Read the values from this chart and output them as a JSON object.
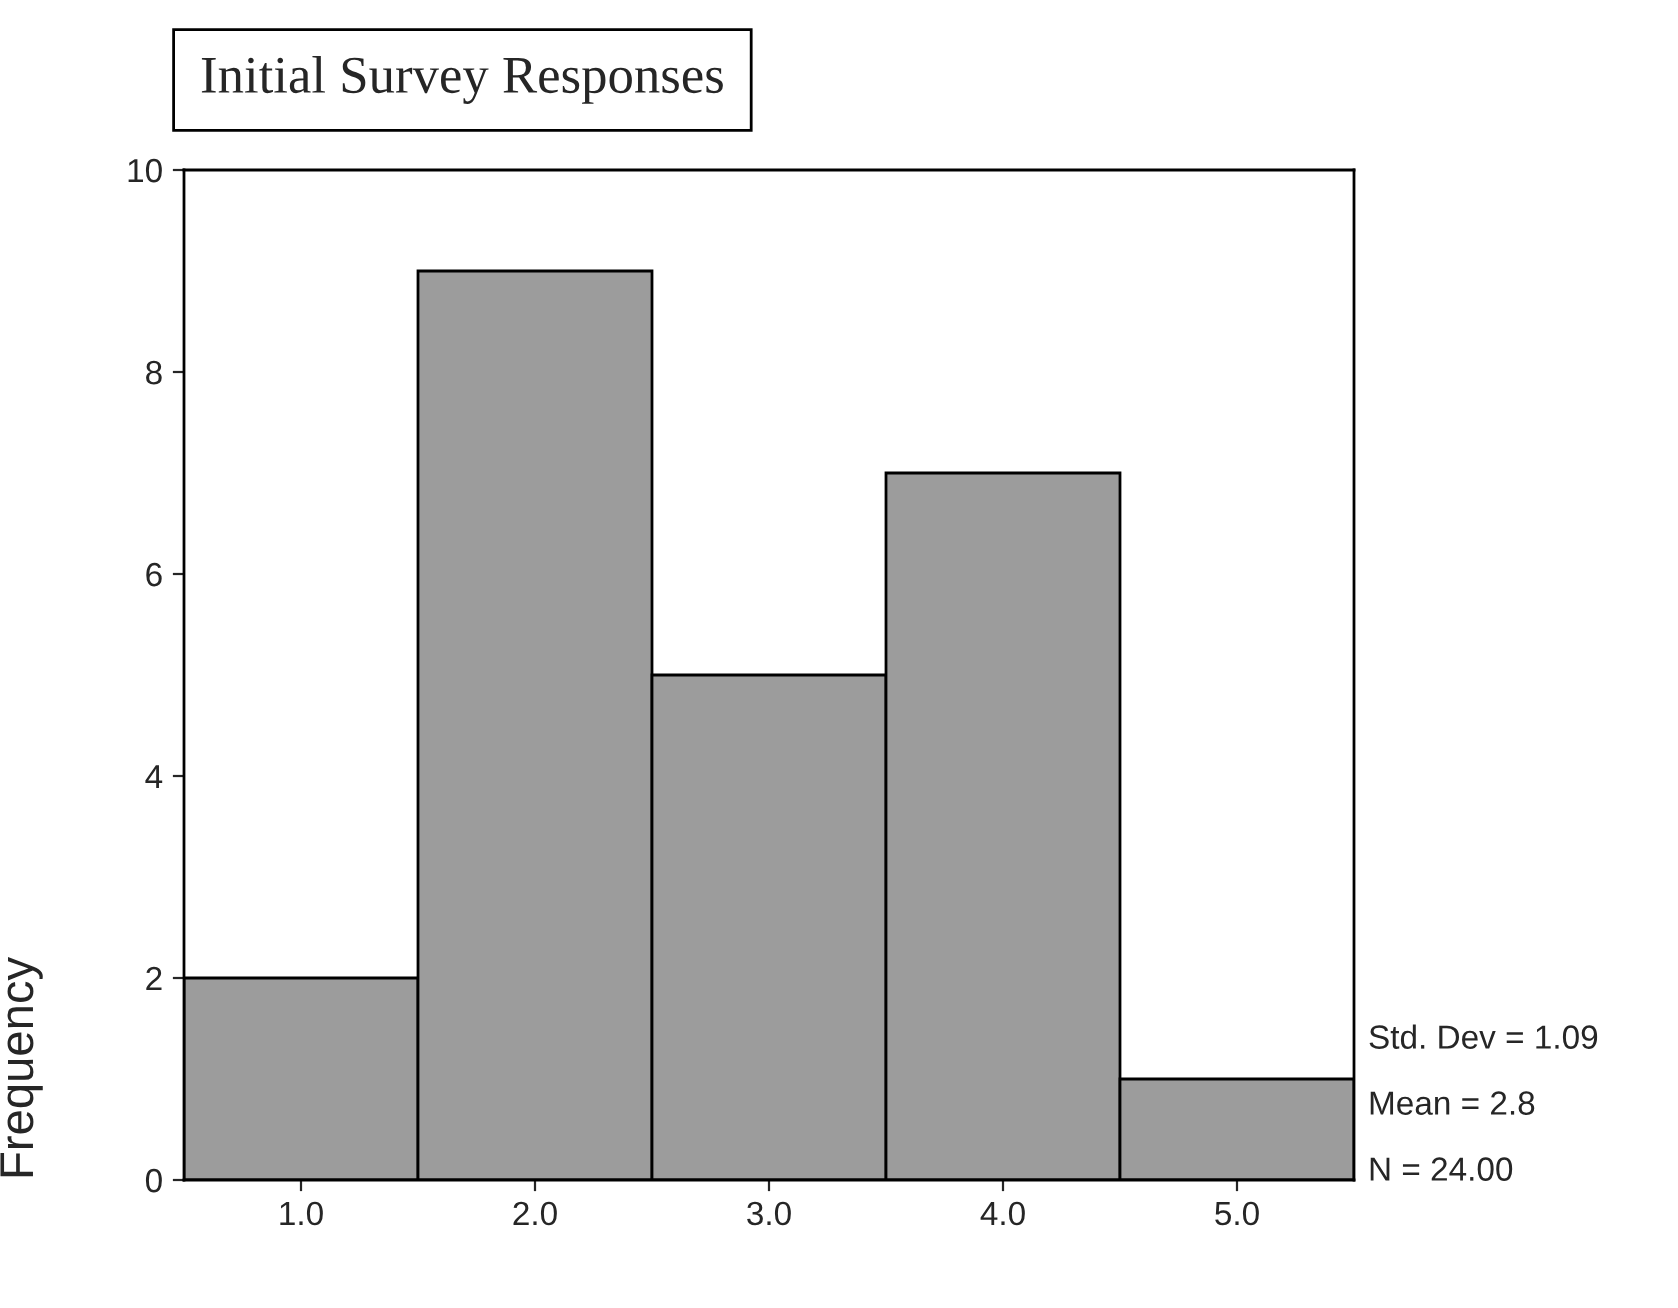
{
  "chart_data": {
    "type": "histogram",
    "title": "Initial Survey Responses",
    "ylabel": "Frequency",
    "bins": [
      0.5,
      1.5,
      2.5,
      3.5,
      4.5,
      5.5
    ],
    "values": [
      2,
      9,
      5,
      7,
      1
    ],
    "color": "#9c9c9c",
    "xlim": [
      0.5,
      5.5
    ],
    "xticks": [
      {
        "value": 1,
        "label": "1.0"
      },
      {
        "value": 2,
        "label": "2.0"
      },
      {
        "value": 3,
        "label": "3.0"
      },
      {
        "value": 4,
        "label": "4.0"
      },
      {
        "value": 5,
        "label": "5.0"
      }
    ],
    "ylim": [
      0,
      10
    ],
    "yticks": [
      0,
      2,
      4,
      6,
      8,
      10
    ],
    "grid": false,
    "annotations": [
      "Std. Dev = 1.09",
      "Mean = 2.8",
      "N = 24.00"
    ]
  }
}
